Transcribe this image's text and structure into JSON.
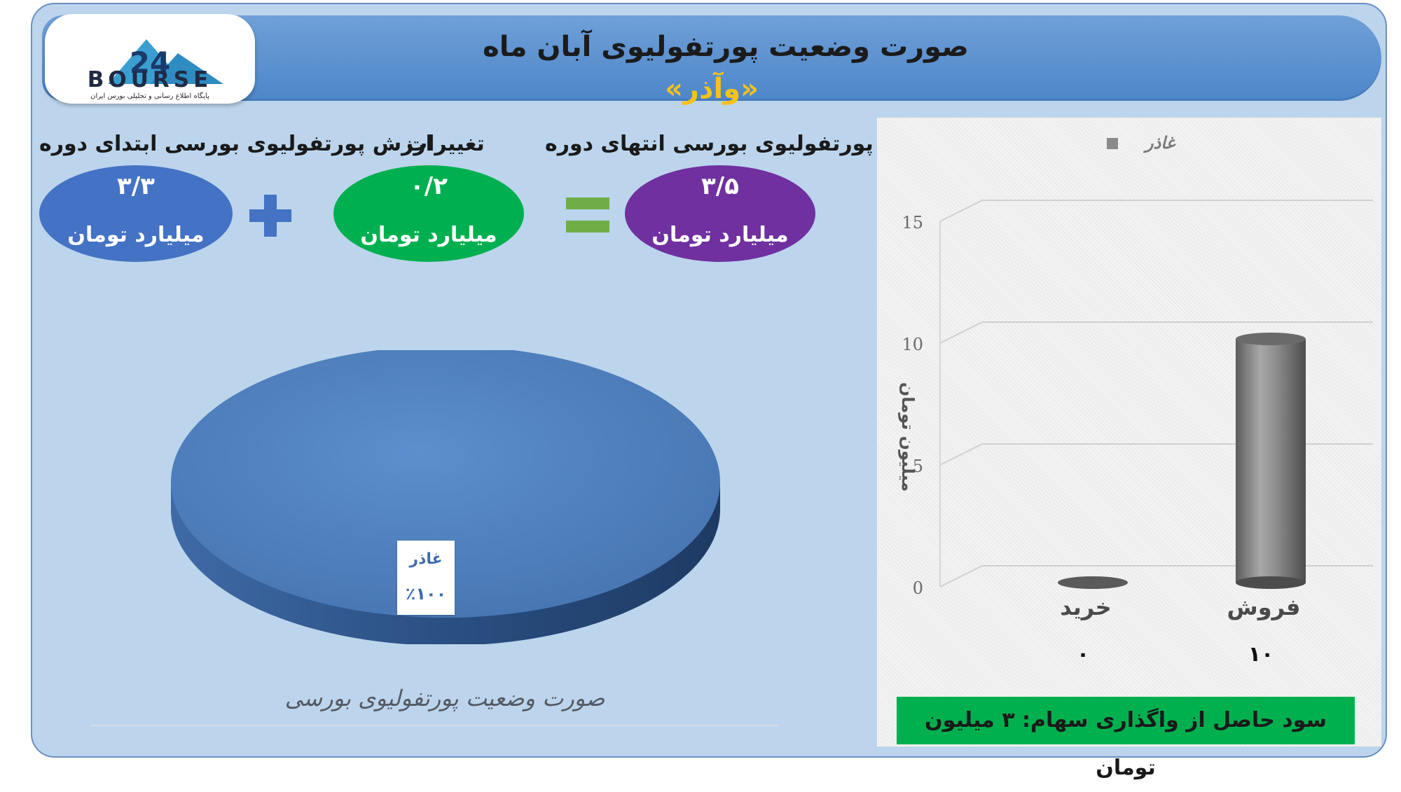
{
  "header": {
    "title": "صورت وضعیت پورتفولیوی آبان ماه",
    "subtitle": "«وآذر»"
  },
  "logo": {
    "text": "BOURSE",
    "number": "24",
    "subtitle": "پایگاه اطلاع رسانی و تحلیلی بورس ایران"
  },
  "summary": {
    "end_label": "ارزش پورتفولیوی بورسی انتهای دوره",
    "end_value": "۳/۵",
    "end_unit": "میلیارد تومان",
    "change_label": "تغییرات",
    "change_value": "۰/۲",
    "change_unit": "میلیارد تومان",
    "start_label": "ارزش پورتفولیوی بورسی ابتدای دوره",
    "start_value": "۳/۳",
    "start_unit": "میلیارد تومان",
    "plus_symbol": "+",
    "equals_symbol": "="
  },
  "colors": {
    "end_ellipse": "#7030a0",
    "change_ellipse": "#00b050",
    "start_ellipse": "#4472c4",
    "plus": "#4472c4",
    "equals": "#70ad47",
    "pie": "#4a7ebd",
    "bar": "#8a8a8a",
    "footer": "#00b04f"
  },
  "chart_data": [
    {
      "type": "pie",
      "title": "صورت وضعیت پورتفولیوی بورسی",
      "labels": [
        "غاذر"
      ],
      "values": [
        100
      ],
      "data_labels": [
        {
          "name": "غاذر",
          "percent": "٪۱۰۰"
        }
      ]
    },
    {
      "type": "bar",
      "categories": [
        "فروش",
        "خرید"
      ],
      "series": [
        {
          "name": "غاذر",
          "values": [
            10,
            0
          ]
        }
      ],
      "value_labels": [
        "۱۰",
        "۰"
      ],
      "ylabel": "میلیون تومان",
      "ylim": [
        0,
        15
      ],
      "yticks": [
        0,
        5,
        10,
        15
      ],
      "legend": "top",
      "grid": true
    }
  ],
  "footer": {
    "text": "سود حاصل از واگذاری سهام: ۳ میلیون تومان"
  }
}
